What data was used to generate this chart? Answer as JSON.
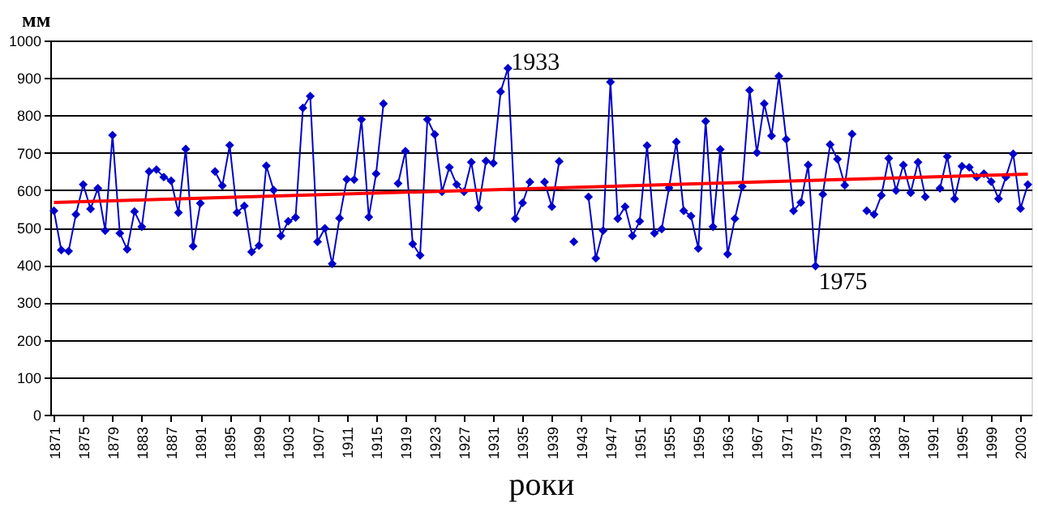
{
  "chart_data": {
    "type": "line",
    "xlabel": "роки",
    "ylabel": "мм",
    "xlim": [
      1870.5,
      2004.5
    ],
    "xticks": [
      1871,
      1875,
      1879,
      1883,
      1887,
      1891,
      1895,
      1899,
      1903,
      1907,
      1911,
      1915,
      1919,
      1923,
      1927,
      1931,
      1935,
      1939,
      1943,
      1947,
      1951,
      1955,
      1959,
      1963,
      1967,
      1971,
      1975,
      1979,
      1983,
      1987,
      1991,
      1995,
      1999,
      2003
    ],
    "ylim": [
      0,
      1000
    ],
    "yticks": [
      0,
      100,
      200,
      300,
      400,
      500,
      600,
      700,
      800,
      900,
      1000
    ],
    "grid": "y",
    "annotations": [
      {
        "text": "1933",
        "x": 1933,
        "y": 926
      },
      {
        "text": "1975",
        "x": 1975,
        "y": 397
      }
    ],
    "series": [
      {
        "color": "#0000cc",
        "marker": "diamond",
        "line_style": "solid",
        "x": [
          1871,
          1872,
          1873,
          1874,
          1875,
          1876,
          1877,
          1878,
          1879,
          1880,
          1881,
          1882,
          1883,
          1884,
          1885,
          1886,
          1887,
          1888,
          1889,
          1890,
          1891,
          1892,
          1893,
          1894,
          1895,
          1896,
          1897,
          1898,
          1899,
          1900,
          1901,
          1902,
          1903,
          1904,
          1905,
          1906,
          1907,
          1908,
          1909,
          1910,
          1911,
          1912,
          1913,
          1914,
          1915,
          1916,
          1917,
          1918,
          1919,
          1920,
          1921,
          1922,
          1923,
          1924,
          1925,
          1926,
          1927,
          1928,
          1929,
          1930,
          1931,
          1932,
          1933,
          1934,
          1935,
          1936,
          1937,
          1938,
          1939,
          1940,
          1941,
          1942,
          1943,
          1944,
          1945,
          1946,
          1947,
          1948,
          1949,
          1950,
          1951,
          1952,
          1953,
          1954,
          1955,
          1956,
          1957,
          1958,
          1959,
          1960,
          1961,
          1962,
          1963,
          1964,
          1965,
          1966,
          1967,
          1968,
          1969,
          1970,
          1971,
          1972,
          1973,
          1974,
          1975,
          1976,
          1977,
          1978,
          1979,
          1980,
          1981,
          1982,
          1983,
          1984,
          1985,
          1986,
          1987,
          1988,
          1989,
          1990,
          1991,
          1992,
          1993,
          1994,
          1995,
          1996,
          1997,
          1998,
          1999,
          2000,
          2001,
          2002,
          2003,
          2004
        ],
        "values": [
          545,
          440,
          437,
          535,
          615,
          550,
          605,
          492,
          747,
          485,
          442,
          543,
          502,
          650,
          655,
          635,
          625,
          540,
          710,
          450,
          565,
          null,
          650,
          612,
          720,
          540,
          558,
          435,
          452,
          665,
          600,
          478,
          517,
          527,
          820,
          851,
          462,
          498,
          403,
          525,
          629,
          628,
          789,
          528,
          644,
          831,
          null,
          618,
          704,
          456,
          426,
          789,
          749,
          596,
          661,
          615,
          596,
          675,
          553,
          678,
          672,
          863,
          926,
          524,
          566,
          622,
          null,
          622,
          556,
          677,
          null,
          462,
          null,
          582,
          418,
          492,
          889,
          524,
          556,
          478,
          517,
          719,
          485,
          496,
          606,
          729,
          545,
          531,
          444,
          784,
          502,
          709,
          429,
          524,
          610,
          867,
          700,
          831,
          745,
          905,
          736,
          545,
          567,
          667,
          397,
          589,
          722,
          683,
          613,
          750,
          null,
          545,
          535,
          586,
          685,
          599,
          667,
          593,
          675,
          582,
          null,
          605,
          690,
          577,
          664,
          661,
          635,
          644,
          623,
          577,
          635,
          697,
          551,
          615
        ]
      },
      {
        "color": "#ff0000",
        "marker": "none",
        "line_style": "solid",
        "x": [
          1871,
          2004
        ],
        "values": [
          567,
          643
        ]
      }
    ]
  }
}
